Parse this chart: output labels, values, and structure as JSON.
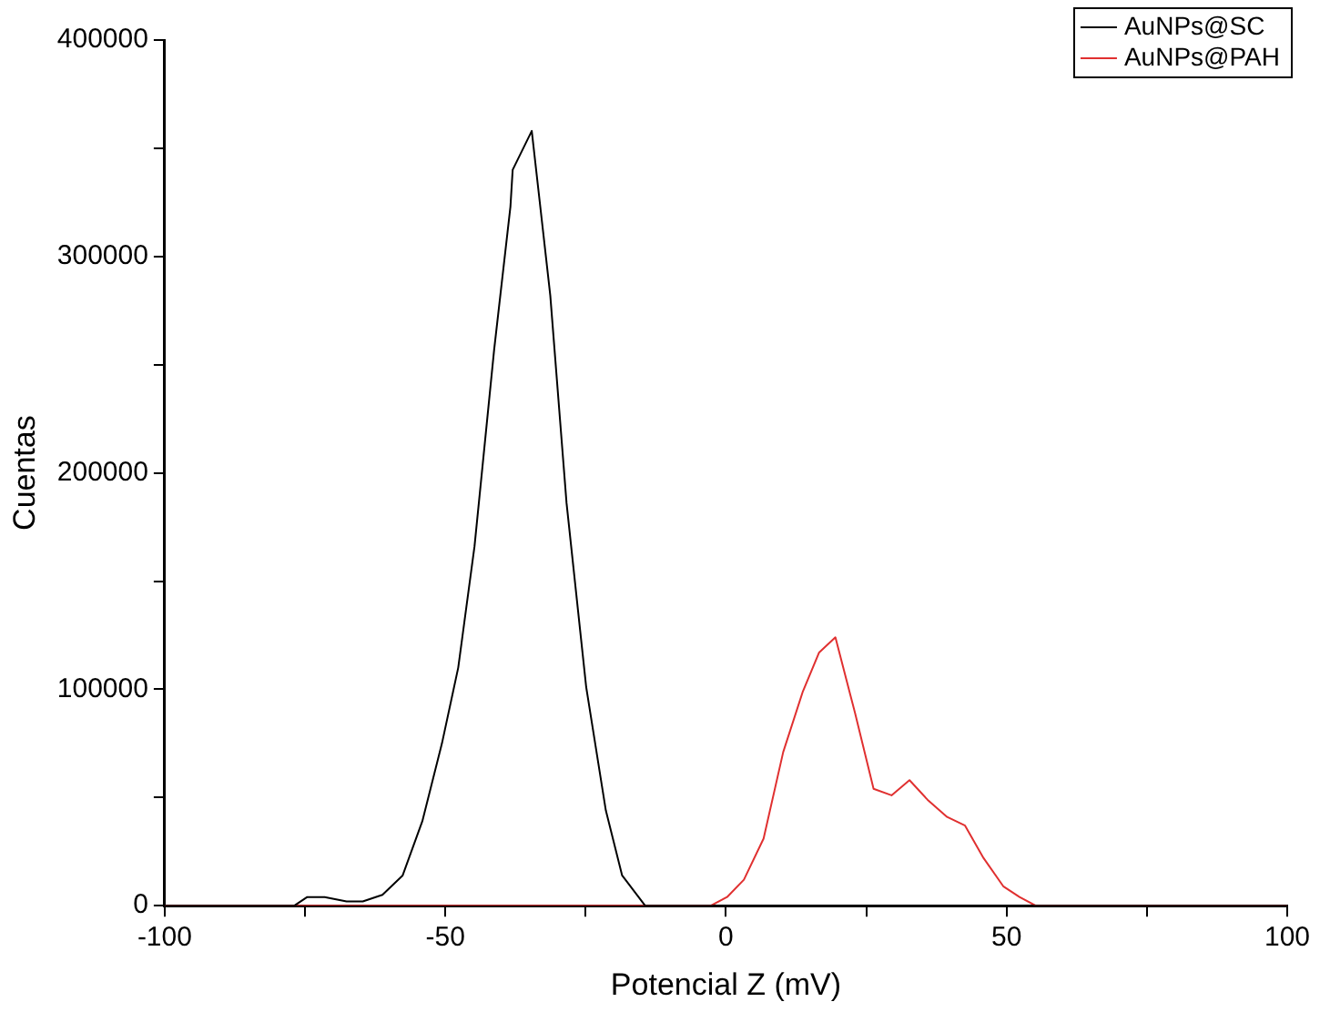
{
  "chart_data": {
    "type": "line",
    "xlabel": "Potencial Z (mV)",
    "ylabel": "Cuentas",
    "series": [
      {
        "name": "AuNPs@SC",
        "color": "#000000",
        "x": [
          -100,
          -76.9,
          -74.6,
          -71.5,
          -67.6,
          -64.7,
          -61.2,
          -57.6,
          -54.1,
          -50.6,
          -47.7,
          -44.8,
          -41.3,
          -38.4,
          -38.0,
          -34.6,
          -31.3,
          -28.4,
          -24.9,
          -21.4,
          -18.5,
          -14.4,
          100
        ],
        "values": [
          0,
          0,
          4000,
          4000,
          2000,
          2000,
          5000,
          14000,
          39000,
          75000,
          110000,
          166000,
          257000,
          323000,
          340000,
          358000,
          282000,
          186000,
          101000,
          44000,
          14000,
          0,
          0
        ]
      },
      {
        "name": "AuNPs@PAH",
        "color": "#e03030",
        "x": [
          -100,
          -2.7,
          0.2,
          3.2,
          6.7,
          10.2,
          13.7,
          16.6,
          19.5,
          23.0,
          26.3,
          29.5,
          32.7,
          35.9,
          39.4,
          42.6,
          45.9,
          49.4,
          52.3,
          55.2,
          100
        ],
        "values": [
          0,
          0,
          4000,
          12000,
          31000,
          71000,
          99000,
          117000,
          124000,
          89000,
          54000,
          51000,
          58000,
          49000,
          41000,
          37000,
          22000,
          9000,
          4000,
          0,
          0
        ]
      }
    ],
    "xlim": [
      -100,
      100
    ],
    "xticks": [
      -100,
      {
        "value": -75,
        "label": null
      },
      -50,
      {
        "value": -25,
        "label": null
      },
      0,
      {
        "value": 25,
        "label": null
      },
      50,
      {
        "value": 75,
        "label": null
      },
      100
    ],
    "ylim": [
      0,
      400000
    ],
    "yticks": [
      0,
      {
        "value": 50000,
        "label": null
      },
      100000,
      {
        "value": 150000,
        "label": null
      },
      200000,
      {
        "value": 250000,
        "label": null
      },
      300000,
      {
        "value": 350000,
        "label": null
      },
      400000
    ],
    "legend": "top right",
    "marker": "none",
    "line_style": "solid",
    "grid": false
  }
}
